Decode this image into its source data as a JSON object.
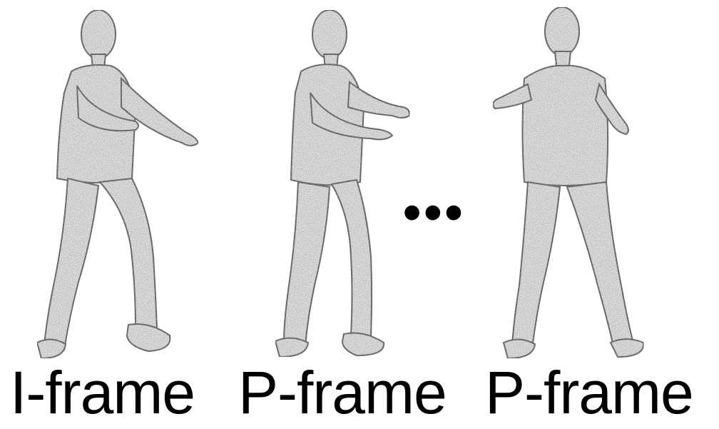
{
  "frames": [
    {
      "label": "I-frame"
    },
    {
      "label": "P-frame"
    },
    {
      "label": "P-frame"
    }
  ],
  "ellipsis": "•••",
  "colors": {
    "background": "#ffffff",
    "text": "#000000",
    "figure_fill": "#e8e8e8",
    "figure_stroke": "#444444"
  }
}
